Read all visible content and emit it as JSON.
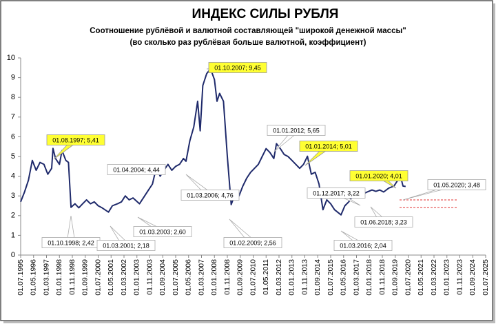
{
  "chart_data": {
    "type": "line",
    "title": "ИНДЕКС СИЛЫ РУБЛЯ",
    "subtitle": [
      "Соотношение рублёвой и валютной  составляющей \"широкой денежной массы\"",
      "(во сколько раз рублёвая больше валютной,  коэффициент)"
    ],
    "x": [
      "01.07.1995",
      "01.10.1995",
      "01.01.1996",
      "01.04.1996",
      "01.07.1996",
      "01.10.1996",
      "01.01.1997",
      "01.04.1997",
      "01.07.1997",
      "01.08.1997",
      "01.10.1997",
      "01.01.1998",
      "01.03.1998",
      "01.06.1998",
      "01.08.1998",
      "01.10.1998",
      "01.01.1999",
      "01.04.1999",
      "01.07.1999",
      "01.10.1999",
      "01.01.2000",
      "01.04.2000",
      "01.07.2000",
      "01.10.2000",
      "01.03.2001",
      "01.06.2001",
      "01.10.2001",
      "01.01.2002",
      "01.04.2002",
      "01.07.2002",
      "01.10.2002",
      "01.03.2003",
      "01.06.2003",
      "01.10.2003",
      "01.01.2004",
      "01.04.2004",
      "01.07.2004",
      "01.10.2004",
      "01.01.2005",
      "01.04.2005",
      "01.07.2005",
      "01.10.2005",
      "01.01.2006",
      "01.03.2006",
      "01.06.2006",
      "01.09.2006",
      "01.12.2006",
      "01.02.2007",
      "01.04.2007",
      "01.07.2007",
      "01.10.2007",
      "01.01.2008",
      "01.03.2008",
      "01.05.2008",
      "01.08.2008",
      "01.11.2008",
      "01.02.2009",
      "01.05.2009",
      "01.08.2009",
      "01.11.2009",
      "01.02.2010",
      "01.05.2010",
      "01.08.2010",
      "01.11.2010",
      "01.02.2011",
      "01.05.2011",
      "01.08.2011",
      "01.11.2011",
      "01.01.2012",
      "01.04.2012",
      "01.07.2012",
      "01.10.2012",
      "01.01.2013",
      "01.04.2013",
      "01.07.2013",
      "01.10.2013",
      "01.01.2014",
      "01.04.2014",
      "01.07.2014",
      "01.10.2014",
      "01.01.2015",
      "01.04.2015",
      "01.07.2015",
      "01.10.2015",
      "01.03.2016",
      "01.06.2016",
      "01.09.2016",
      "01.12.2016",
      "01.04.2017",
      "01.08.2017",
      "01.12.2017",
      "01.03.2018",
      "01.06.2018",
      "01.09.2018",
      "01.12.2018",
      "01.04.2019",
      "01.08.2019",
      "01.01.2020",
      "01.03.2020",
      "01.05.2020"
    ],
    "series": [
      {
        "color": "#1f2a6b",
        "values": [
          2.7,
          3.2,
          3.8,
          4.8,
          4.3,
          4.7,
          4.6,
          4.1,
          4.4,
          5.41,
          4.9,
          4.6,
          5.3,
          4.8,
          4.7,
          2.42,
          2.6,
          2.4,
          2.6,
          2.8,
          2.6,
          2.7,
          2.5,
          2.4,
          2.18,
          2.5,
          2.6,
          2.7,
          3.0,
          2.8,
          2.9,
          2.6,
          2.9,
          3.3,
          3.6,
          4.44,
          4.0,
          4.3,
          4.6,
          4.3,
          4.5,
          4.6,
          4.9,
          4.76,
          5.8,
          6.5,
          7.8,
          6.3,
          8.6,
          9.2,
          9.45,
          8.9,
          7.8,
          8.2,
          7.8,
          5.0,
          2.56,
          3.1,
          3.0,
          3.5,
          3.9,
          4.2,
          4.4,
          4.6,
          5.0,
          5.4,
          5.2,
          4.9,
          5.65,
          5.4,
          5.1,
          5.0,
          4.8,
          4.6,
          4.4,
          4.6,
          5.01,
          4.1,
          4.2,
          3.6,
          2.3,
          2.8,
          2.6,
          2.3,
          2.04,
          2.5,
          2.7,
          3.0,
          3.0,
          3.1,
          3.22,
          3.3,
          3.23,
          3.3,
          3.2,
          3.4,
          3.5,
          4.01,
          3.5,
          3.48
        ]
      }
    ],
    "xlim": [
      "01.07.1995",
      "01.07.2025"
    ],
    "xticks": [
      "01.07.1995",
      "01.05.1996",
      "01.03.1997",
      "01.01.1998",
      "01.11.1998",
      "01.09.1999",
      "01.07.2000",
      "01.05.2001",
      "01.03.2002",
      "01.01.2003",
      "01.11.2003",
      "01.09.2004",
      "01.07.2005",
      "01.05.2006",
      "01.03.2007",
      "01.01.2008",
      "01.11.2008",
      "01.09.2009",
      "01.07.2010",
      "01.05.2011",
      "01.03.2012",
      "01.01.2013",
      "01.11.2013",
      "01.09.2014",
      "01.07.2015",
      "01.05.2016",
      "01.03.2017",
      "01.01.2018",
      "01.11.2018",
      "01.09.2019",
      "01.07.2020",
      "01.05.2021",
      "01.03.2022",
      "01.01.2023",
      "01.11.2023",
      "01.09.2024",
      "01.07.2025"
    ],
    "ylim": [
      0,
      10
    ],
    "yticks": [
      0,
      1,
      2,
      3,
      4,
      5,
      6,
      7,
      8,
      9,
      10
    ],
    "annotations": [
      {
        "text": "01.10.2007; 9,45",
        "highlight": true
      },
      {
        "text": "01.08.1997; 5,41",
        "highlight": true
      },
      {
        "text": "01.04.2004; 4,44",
        "highlight": false
      },
      {
        "text": "01.01.2012; 5,65",
        "highlight": false
      },
      {
        "text": "01.01.2014; 5,01",
        "highlight": true
      },
      {
        "text": "01.01.2020; 4,01",
        "highlight": true
      },
      {
        "text": "01.05.2020; 3,48",
        "highlight": false
      },
      {
        "text": "01.12.2017; 3,22",
        "highlight": false
      },
      {
        "text": "01.06.2018; 3,23",
        "highlight": false
      },
      {
        "text": "01.03.2006; 4,76",
        "highlight": false
      },
      {
        "text": "01.03.2003; 2,60",
        "highlight": false
      },
      {
        "text": "01.10.1998; 2,42",
        "highlight": false
      },
      {
        "text": "01.03.2001; 2,18",
        "highlight": false
      },
      {
        "text": "01.02.2009; 2,56",
        "highlight": false
      },
      {
        "text": "01.03.2016; 2,04",
        "highlight": false
      }
    ]
  }
}
